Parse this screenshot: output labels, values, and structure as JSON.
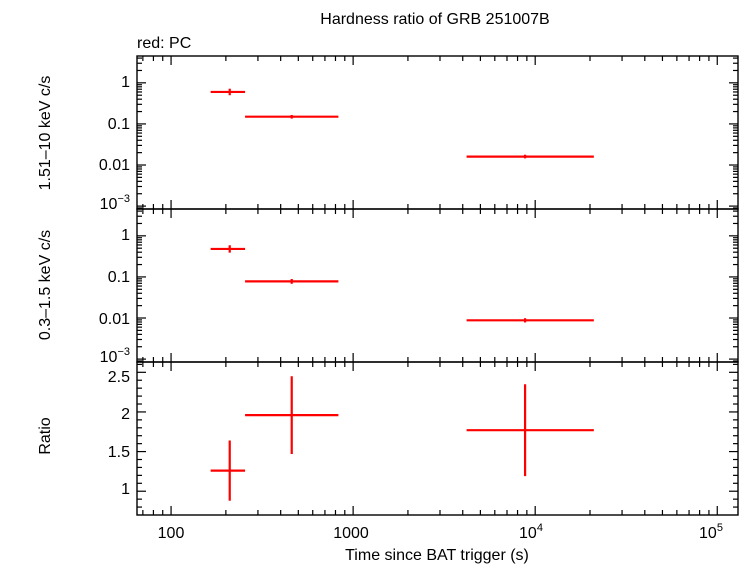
{
  "chart_data": {
    "type": "scatter",
    "title": "Hardness ratio of GRB 251007B",
    "legend": "red: PC",
    "xlabel": "Time since BAT trigger (s)",
    "xscale": "log",
    "xlim": [
      65,
      130000
    ],
    "x_tick_labels": [
      "100",
      "1000",
      "10",
      "10"
    ],
    "x_tick_sup": [
      "",
      "",
      "4",
      "5"
    ],
    "panels": [
      {
        "ylabel": "1.51–10 keV c/s",
        "yscale": "log",
        "ylim": [
          0.00085,
          4.5
        ],
        "y_tick_labels": [
          "1",
          "0.1",
          "0.01",
          "10"
        ],
        "y_tick_sup": [
          "",
          "",
          "",
          "−3"
        ],
        "points": [
          {
            "x": 210,
            "xlo": 165,
            "xhi": 255,
            "y": 0.6,
            "ylo": 0.5,
            "yhi": 0.72
          },
          {
            "x": 460,
            "xlo": 255,
            "xhi": 830,
            "y": 0.15,
            "ylo": 0.135,
            "yhi": 0.165
          },
          {
            "x": 8800,
            "xlo": 4200,
            "xhi": 21000,
            "y": 0.016,
            "ylo": 0.0145,
            "yhi": 0.0178
          }
        ]
      },
      {
        "ylabel": "0.3–1.5 keV c/s",
        "yscale": "log",
        "ylim": [
          0.00085,
          4.5
        ],
        "y_tick_labels": [
          "1",
          "0.1",
          "0.01",
          "10"
        ],
        "y_tick_sup": [
          "",
          "",
          "",
          "−3"
        ],
        "points": [
          {
            "x": 210,
            "xlo": 165,
            "xhi": 255,
            "y": 0.48,
            "ylo": 0.39,
            "yhi": 0.59
          },
          {
            "x": 460,
            "xlo": 255,
            "xhi": 830,
            "y": 0.078,
            "ylo": 0.068,
            "yhi": 0.089
          },
          {
            "x": 8800,
            "xlo": 4200,
            "xhi": 21000,
            "y": 0.0088,
            "ylo": 0.0078,
            "yhi": 0.0099
          }
        ]
      },
      {
        "ylabel": "Ratio",
        "yscale": "linear",
        "ylim": [
          0.7,
          2.63
        ],
        "y_tick_labels": [
          "2.5",
          "2",
          "1.5",
          "1"
        ],
        "points": [
          {
            "x": 210,
            "xlo": 165,
            "xhi": 255,
            "y": 1.26,
            "ylo": 0.88,
            "yhi": 1.64
          },
          {
            "x": 460,
            "xlo": 255,
            "xhi": 830,
            "y": 1.96,
            "ylo": 1.47,
            "yhi": 2.45
          },
          {
            "x": 8800,
            "xlo": 4200,
            "xhi": 21000,
            "y": 1.77,
            "ylo": 1.19,
            "yhi": 2.35
          }
        ]
      }
    ]
  }
}
